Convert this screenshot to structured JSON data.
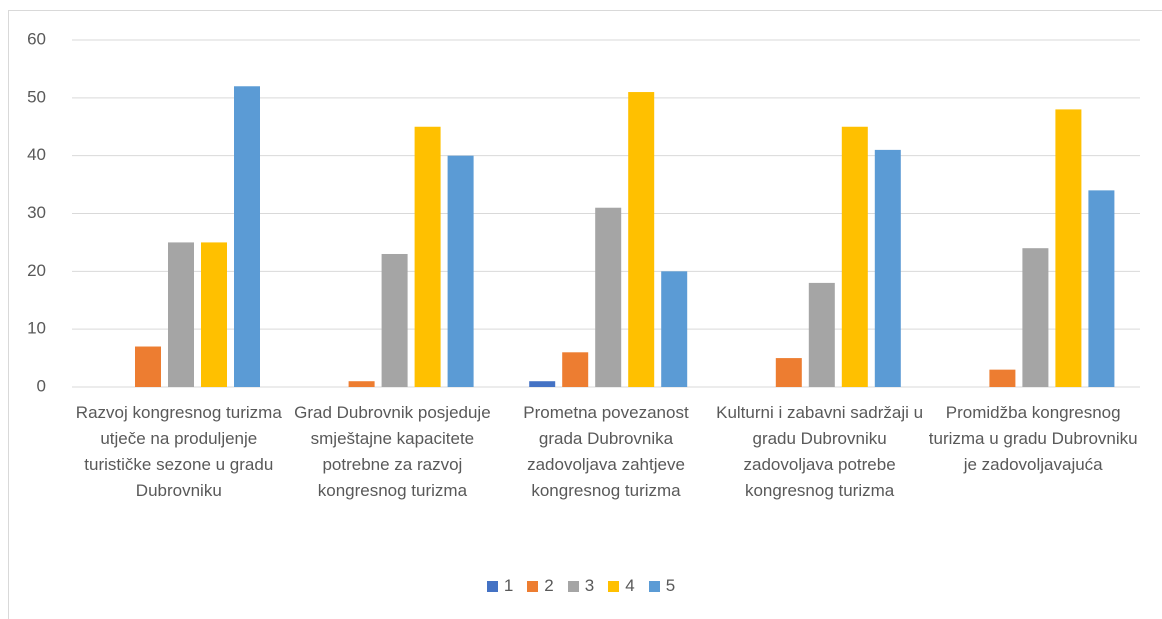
{
  "chart_data": {
    "type": "bar",
    "categories": [
      "Razvoj kongresnog turizma utječe na produljenje turističke sezone u gradu Dubrovniku",
      "Grad Dubrovnik posjeduje smještajne kapacitete potrebne za razvoj kongresnog turizma",
      "Prometna povezanost grada Dubrovnika zadovoljava zahtjeve kongresnog turizma",
      "Kulturni i zabavni sadržaji u gradu Dubrovniku zadovoljava potrebe kongresnog turizma",
      "Promidžba kongresnog turizma u gradu Dubrovniku je zadovoljavajuća"
    ],
    "series": [
      {
        "name": "1",
        "color": "#4472c4",
        "values": [
          0,
          0,
          1,
          0,
          0
        ]
      },
      {
        "name": "2",
        "color": "#ed7d31",
        "values": [
          7,
          1,
          6,
          5,
          3
        ]
      },
      {
        "name": "3",
        "color": "#a5a5a5",
        "values": [
          25,
          23,
          31,
          18,
          24
        ]
      },
      {
        "name": "4",
        "color": "#ffc000",
        "values": [
          25,
          45,
          51,
          45,
          48
        ]
      },
      {
        "name": "5",
        "color": "#5b9bd5",
        "values": [
          52,
          40,
          20,
          41,
          34
        ]
      }
    ],
    "ylim": [
      0,
      60
    ],
    "yticks": [
      0,
      10,
      20,
      30,
      40,
      50,
      60
    ],
    "grid": true,
    "legend": "bottom"
  }
}
